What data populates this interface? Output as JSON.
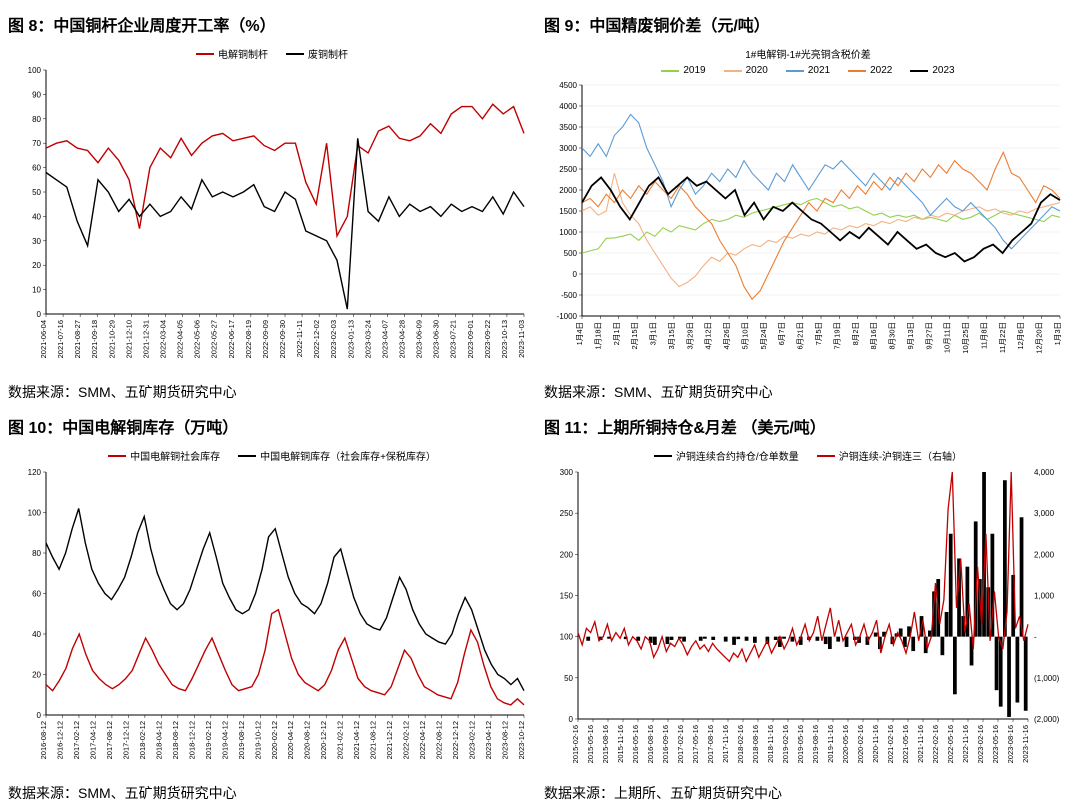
{
  "panels": {
    "p8": {
      "title": "图 8：中国铜杆企业周度开工率（%）",
      "source": "数据来源：SMM、五矿期货研究中心",
      "type": "line",
      "legend": [
        {
          "label": "电解铜制杆",
          "color": "#c00000"
        },
        {
          "label": "废铜制杆",
          "color": "#000000"
        }
      ],
      "ylim": [
        0,
        100
      ],
      "ytick_step": 10,
      "title_fontsize": 16,
      "axis_fontsize": 8,
      "background_color": "#ffffff",
      "grid_color": "#ffffff",
      "x_labels": [
        "2021-06-04",
        "2021-07-16",
        "2021-08-27",
        "2021-09-18",
        "2021-10-29",
        "2021-12-10",
        "2021-12-31",
        "2022-03-04",
        "2022-04-05",
        "2022-05-06",
        "2022-05-27",
        "2022-06-17",
        "2022-08-19",
        "2022-09-09",
        "2022-09-30",
        "2022-11-11",
        "2022-12-02",
        "2023-02-03",
        "2023-01-13",
        "2023-03-24",
        "2023-04-07",
        "2023-04-28",
        "2023-06-09",
        "2023-06-30",
        "2023-07-21",
        "2023-09-01",
        "2023-09-22",
        "2023-10-13",
        "2023-11-03"
      ],
      "series": [
        {
          "name": "电解铜制杆",
          "color": "#c00000",
          "line_width": 1.4,
          "values": [
            68,
            70,
            71,
            68,
            67,
            62,
            68,
            63,
            55,
            35,
            60,
            68,
            64,
            72,
            65,
            70,
            73,
            74,
            71,
            72,
            73,
            69,
            67,
            70,
            70,
            54,
            45,
            70,
            32,
            40,
            69,
            66,
            75,
            77,
            72,
            71,
            73,
            78,
            74,
            82,
            85,
            85,
            80,
            86,
            82,
            85,
            74
          ]
        },
        {
          "name": "废铜制杆",
          "color": "#000000",
          "line_width": 1.4,
          "values": [
            58,
            55,
            52,
            38,
            28,
            55,
            50,
            42,
            47,
            40,
            45,
            40,
            42,
            48,
            43,
            55,
            48,
            50,
            48,
            50,
            53,
            44,
            42,
            50,
            47,
            34,
            32,
            30,
            22,
            2,
            72,
            42,
            38,
            48,
            40,
            45,
            42,
            44,
            40,
            45,
            42,
            44,
            42,
            48,
            41,
            50,
            44
          ]
        }
      ]
    },
    "p9": {
      "title": "图 9：中国精废铜价差（元/吨）",
      "subtitle": "1#电解铜-1#光亮铜含税价差",
      "source": "数据来源：SMM、五矿期货研究中心",
      "type": "line",
      "legend": [
        {
          "label": "2019",
          "color": "#92d050"
        },
        {
          "label": "2020",
          "color": "#f4b183"
        },
        {
          "label": "2021",
          "color": "#5b9bd5"
        },
        {
          "label": "2022",
          "color": "#ed7d31"
        },
        {
          "label": "2023",
          "color": "#000000"
        }
      ],
      "ylim": [
        -1000,
        4500
      ],
      "yticks": [
        -1000,
        -500,
        0,
        500,
        1000,
        1500,
        2000,
        2500,
        3000,
        3500,
        4000,
        4500
      ],
      "background_color": "#ffffff",
      "grid_color": "#e7e7e7",
      "x_labels": [
        "1月4日",
        "1月18日",
        "2月1日",
        "2月15日",
        "3月1日",
        "3月15日",
        "3月29日",
        "4月12日",
        "4月26日",
        "5月10日",
        "5月24日",
        "6月7日",
        "6月21日",
        "7月5日",
        "7月19日",
        "8月2日",
        "8月16日",
        "8月30日",
        "9月13日",
        "9月27日",
        "10月11日",
        "10月25日",
        "11月8日",
        "11月22日",
        "12月6日",
        "12月20日",
        "1月3日"
      ],
      "series": [
        {
          "name": "2019",
          "color": "#92d050",
          "line_width": 1.1,
          "values": [
            500,
            550,
            600,
            850,
            860,
            900,
            950,
            800,
            1000,
            900,
            1100,
            1000,
            1150,
            1100,
            1050,
            1200,
            1300,
            1250,
            1300,
            1400,
            1350,
            1450,
            1500,
            1550,
            1600,
            1650,
            1700,
            1650,
            1750,
            1800,
            1700,
            1600,
            1650,
            1550,
            1600,
            1500,
            1400,
            1450,
            1350,
            1400,
            1350,
            1400,
            1300,
            1350,
            1300,
            1250,
            1400,
            1300,
            1350,
            1450,
            1300,
            1400,
            1500,
            1450,
            1400,
            1350,
            1300,
            1250,
            1400,
            1350
          ]
        },
        {
          "name": "2020",
          "color": "#f4b183",
          "line_width": 1.1,
          "values": [
            1500,
            1600,
            1400,
            1500,
            2400,
            1700,
            1400,
            1200,
            800,
            500,
            200,
            -100,
            -300,
            -200,
            -50,
            200,
            400,
            300,
            500,
            450,
            600,
            700,
            650,
            800,
            750,
            900,
            850,
            950,
            900,
            1000,
            950,
            1100,
            1050,
            1150,
            1100,
            1200,
            1150,
            1250,
            1200,
            1300,
            1250,
            1350,
            1300,
            1400,
            1350,
            1450,
            1400,
            1500,
            1550,
            1600,
            1500,
            1550,
            1450,
            1400,
            1500,
            1450,
            1550,
            1600,
            1650,
            1700
          ]
        },
        {
          "name": "2021",
          "color": "#5b9bd5",
          "line_width": 1.1,
          "values": [
            3000,
            2800,
            3100,
            2800,
            3300,
            3500,
            3800,
            3600,
            3000,
            2600,
            2200,
            1600,
            2000,
            2300,
            1900,
            2100,
            2400,
            2200,
            2500,
            2300,
            2700,
            2400,
            2200,
            2000,
            2400,
            2200,
            2600,
            2300,
            2000,
            2300,
            2600,
            2500,
            2700,
            2500,
            2300,
            2100,
            2400,
            2200,
            2000,
            2300,
            2100,
            1900,
            1700,
            1400,
            1600,
            1800,
            1600,
            1500,
            1700,
            1500,
            1300,
            1100,
            800,
            600,
            800,
            1000,
            1200,
            1400,
            1600,
            1500
          ]
        },
        {
          "name": "2022",
          "color": "#ed7d31",
          "line_width": 1.1,
          "values": [
            1700,
            1800,
            1600,
            1900,
            1700,
            2000,
            1800,
            2100,
            1900,
            2200,
            2000,
            1800,
            2100,
            1900,
            1600,
            1400,
            1200,
            800,
            500,
            200,
            -300,
            -600,
            -400,
            0,
            400,
            800,
            1100,
            1400,
            1700,
            1500,
            1800,
            1700,
            2000,
            1800,
            2100,
            1900,
            2200,
            2000,
            2300,
            2100,
            2400,
            2200,
            2500,
            2300,
            2600,
            2400,
            2700,
            2500,
            2400,
            2200,
            2000,
            2500,
            2900,
            2400,
            2300,
            2000,
            1700,
            2100,
            2000,
            1800
          ]
        },
        {
          "name": "2023",
          "color": "#000000",
          "line_width": 1.8,
          "values": [
            1700,
            2100,
            2300,
            2000,
            1600,
            1300,
            1700,
            2100,
            2300,
            1900,
            2100,
            2300,
            2100,
            2200,
            2000,
            1800,
            2000,
            1400,
            1700,
            1300,
            1600,
            1500,
            1700,
            1500,
            1300,
            1200,
            1000,
            800,
            1000,
            850,
            1100,
            900,
            700,
            1000,
            800,
            600,
            700,
            500,
            400,
            500,
            300,
            400,
            600,
            700,
            500,
            800,
            1000,
            1200,
            1700,
            1900,
            1760
          ]
        }
      ]
    },
    "p10": {
      "title": "图 10：中国电解铜库存（万吨）",
      "source": "数据来源：SMM、五矿期货研究中心",
      "type": "line",
      "legend": [
        {
          "label": "中国电解铜社会库存",
          "color": "#c00000"
        },
        {
          "label": "中国电解铜库存（社会库存+保税库存）",
          "color": "#000000"
        }
      ],
      "ylim": [
        0,
        120
      ],
      "ytick_step": 20,
      "background_color": "#ffffff",
      "grid_color": "#ffffff",
      "x_labels": [
        "2016-08-12",
        "2016-12-12",
        "2017-02-12",
        "2017-04-12",
        "2017-08-12",
        "2017-12-12",
        "2018-02-12",
        "2018-04-12",
        "2018-08-12",
        "2018-12-12",
        "2019-02-12",
        "2019-04-12",
        "2019-08-12",
        "2019-10-12",
        "2020-02-12",
        "2020-04-12",
        "2020-08-12",
        "2020-12-12",
        "2021-02-12",
        "2021-04-12",
        "2021-08-12",
        "2021-12-12",
        "2022-02-12",
        "2022-04-12",
        "2022-08-12",
        "2022-12-12",
        "2023-02-12",
        "2023-04-12",
        "2023-08-12",
        "2023-10-12"
      ],
      "series": [
        {
          "name": "社会库存",
          "color": "#c00000",
          "line_width": 1.4,
          "values": [
            15,
            12,
            17,
            23,
            33,
            40,
            30,
            22,
            18,
            15,
            13,
            15,
            18,
            22,
            30,
            38,
            32,
            25,
            20,
            15,
            13,
            12,
            18,
            25,
            32,
            38,
            30,
            22,
            15,
            12,
            13,
            14,
            20,
            32,
            50,
            52,
            40,
            28,
            20,
            16,
            14,
            12,
            15,
            22,
            32,
            38,
            28,
            18,
            14,
            12,
            11,
            10,
            14,
            23,
            32,
            28,
            20,
            14,
            12,
            10,
            9,
            8,
            16,
            30,
            42,
            36,
            24,
            14,
            8,
            6,
            5,
            8,
            5
          ]
        },
        {
          "name": "社会+保税",
          "color": "#000000",
          "line_width": 1.4,
          "values": [
            85,
            78,
            72,
            80,
            92,
            102,
            85,
            72,
            65,
            60,
            57,
            62,
            68,
            78,
            90,
            98,
            82,
            70,
            62,
            55,
            52,
            55,
            62,
            72,
            82,
            90,
            78,
            65,
            58,
            52,
            50,
            52,
            60,
            72,
            88,
            92,
            80,
            68,
            60,
            55,
            53,
            50,
            55,
            65,
            78,
            82,
            70,
            58,
            50,
            45,
            43,
            42,
            48,
            58,
            68,
            62,
            52,
            45,
            40,
            38,
            36,
            35,
            40,
            50,
            58,
            52,
            42,
            32,
            25,
            20,
            18,
            15,
            18,
            12
          ]
        }
      ]
    },
    "p11": {
      "title": "图 11：上期所铜持仓&月差 （美元/吨）",
      "source": "数据来源：上期所、五矿期货研究中心",
      "type": "mixed",
      "legend": [
        {
          "label": "沪铜连续合约持仓/仓单数量",
          "color": "#000000"
        },
        {
          "label": "沪铜连续-沪铜连三（右轴）",
          "color": "#c00000"
        }
      ],
      "ylim_left": [
        0,
        300
      ],
      "ytick_step_left": 50,
      "ylim_right": [
        -2000,
        4000
      ],
      "ytick_step_right": 1000,
      "right_tick_labels": [
        "4,000",
        "3,000",
        "2,000",
        "1,000",
        "-",
        "(1,000)",
        "(2,000)"
      ],
      "right_tick_color": "#c00000",
      "background_color": "#ffffff",
      "x_labels": [
        "2015-02-16",
        "2015-05-16",
        "2015-08-16",
        "2015-11-16",
        "2016-05-16",
        "2016-08-16",
        "2016-09-16",
        "2017-02-16",
        "2017-05-16",
        "2017-08-16",
        "2017-11-16",
        "2018-02-16",
        "2018-08-16",
        "2018-11-16",
        "2019-02-16",
        "2019-05-16",
        "2019-08-16",
        "2019-11-16",
        "2020-05-16",
        "2020-02-16",
        "2020-11-16",
        "2021-02-16",
        "2021-05-16",
        "2021-11-16",
        "2022-02-16",
        "2022-05-16",
        "2022-11-16",
        "2023-02-16",
        "2023-05-16",
        "2023-08-16",
        "2023-11-16"
      ],
      "line_series": {
        "name": "沪铜连续合约持仓/仓单数量",
        "color": "#c00000",
        "line_width": 1.3,
        "values": [
          105,
          90,
          110,
          105,
          118,
          95,
          100,
          115,
          95,
          105,
          98,
          110,
          90,
          100,
          95,
          85,
          100,
          95,
          75,
          85,
          100,
          82,
          92,
          88,
          98,
          90,
          78,
          88,
          95,
          85,
          90,
          82,
          92,
          85,
          80,
          75,
          70,
          80,
          75,
          85,
          70,
          80,
          90,
          75,
          85,
          95,
          80,
          90,
          100,
          85,
          95,
          110,
          90,
          100,
          115,
          95,
          105,
          125,
          95,
          115,
          135,
          100,
          120,
          95,
          105,
          115,
          90,
          100,
          115,
          95,
          105,
          120,
          80,
          100,
          115,
          90,
          105,
          95,
          80,
          100,
          130,
          95,
          120,
          85,
          100,
          165,
          115,
          145,
          255,
          300,
          135,
          195,
          105,
          140,
          85,
          185,
          115,
          225,
          95,
          155,
          100,
          85,
          130,
          300,
          110,
          125,
          95,
          115
        ]
      },
      "bar_series": {
        "name": "沪铜连续-沪铜连三",
        "color": "#000000",
        "values": [
          0,
          0,
          -100,
          0,
          0,
          -80,
          0,
          -50,
          0,
          0,
          0,
          -60,
          0,
          0,
          -100,
          0,
          0,
          -150,
          -200,
          0,
          0,
          -180,
          -80,
          0,
          -50,
          -120,
          0,
          0,
          0,
          -100,
          -50,
          0,
          -80,
          0,
          0,
          -120,
          0,
          -200,
          -60,
          0,
          -100,
          0,
          -150,
          0,
          0,
          -180,
          0,
          -80,
          -250,
          -50,
          0,
          -120,
          0,
          -200,
          0,
          -80,
          0,
          -100,
          0,
          -180,
          -300,
          0,
          -120,
          0,
          -250,
          0,
          -80,
          -150,
          0,
          -200,
          0,
          100,
          -300,
          120,
          0,
          -180,
          80,
          200,
          -250,
          250,
          -350,
          0,
          500,
          -400,
          150,
          1100,
          1400,
          -450,
          600,
          2500,
          -1400,
          1900,
          500,
          1700,
          -700,
          2800,
          1400,
          4000,
          1200,
          2500,
          -1300,
          -1700,
          3800,
          -1950,
          1500,
          -1600,
          2900,
          -1800
        ]
      }
    }
  }
}
